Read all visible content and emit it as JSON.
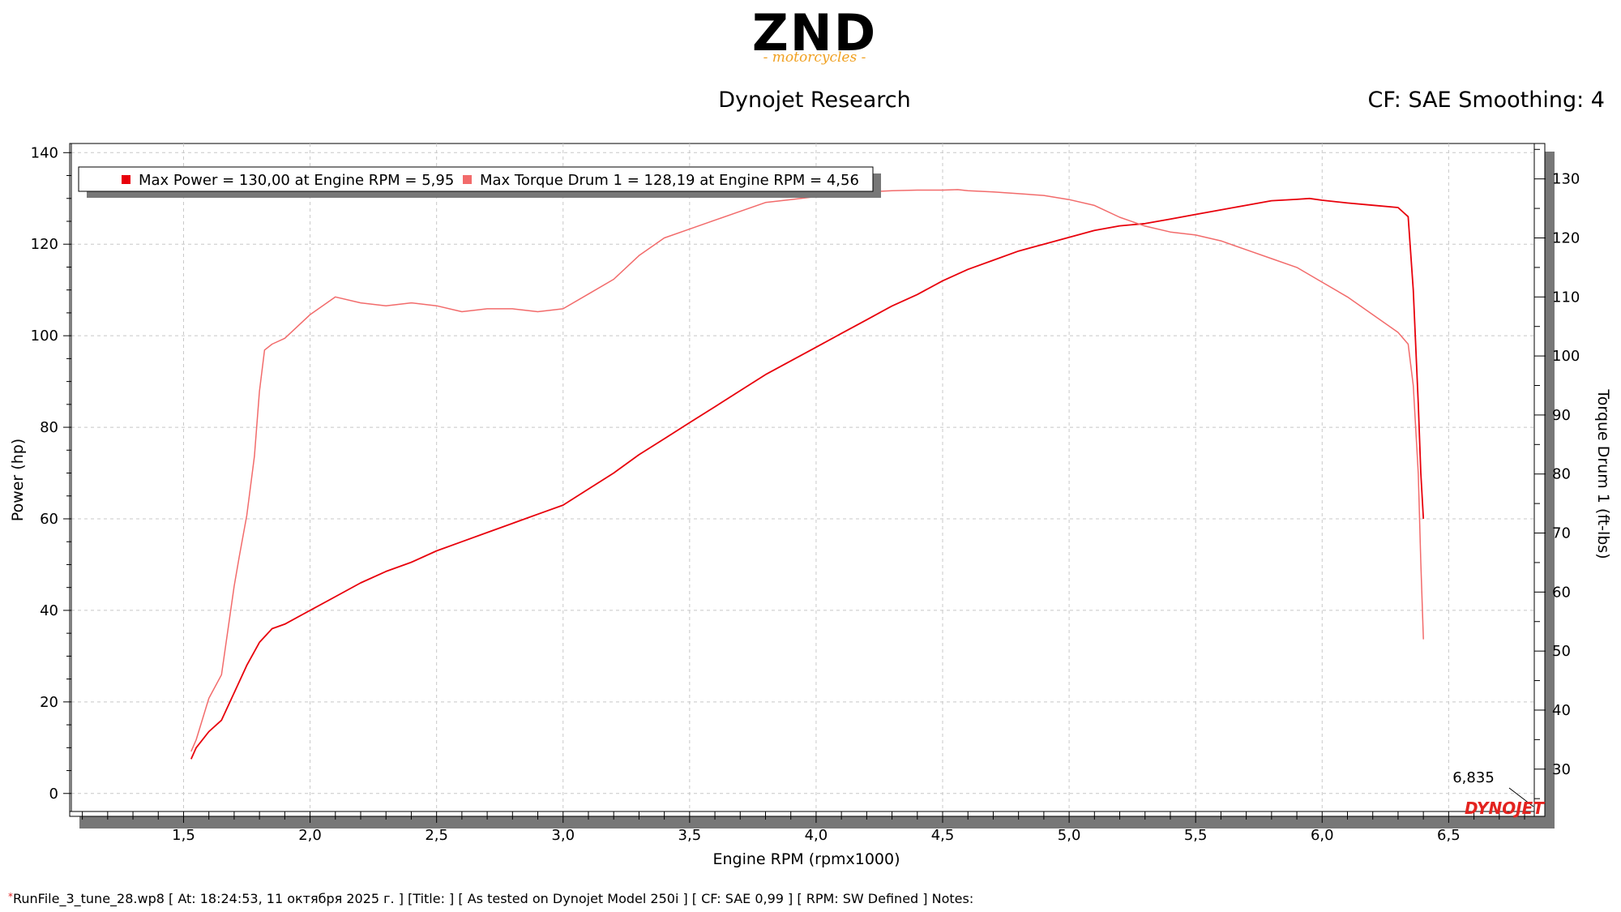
{
  "header": {
    "logo_text": "ZND",
    "logo_sub": "- motorcycles -",
    "center_title": "Dynojet Research",
    "right_info": "CF: SAE Smoothing: 4"
  },
  "footer": {
    "mark": "*",
    "text": "RunFile_3_tune_28.wp8 [ At: 18:24:53, 11 октября 2025 г. ] [Title: ]  [ As tested on Dynojet Model 250i ] [ CF: SAE 0,99 ] [ RPM: SW Defined ] Notes:"
  },
  "watermark": {
    "brand_text": "DYNOJET",
    "color": "#e3231f"
  },
  "chart_data": {
    "type": "line",
    "xlabel": "Engine RPM (rpmx1000)",
    "ylabel": "Power (hp)",
    "y2label": "Torque Drum 1 (ft-lbs)",
    "xlim": [
      1.05,
      6.88
    ],
    "ylim": [
      -5,
      142
    ],
    "y2lim": [
      22,
      136
    ],
    "x_ticks": [
      "1,5",
      "2,0",
      "2,5",
      "3,0",
      "3,5",
      "4,0",
      "4,5",
      "5,0",
      "5,5",
      "6,0",
      "6,5"
    ],
    "x_tick_values": [
      1.5,
      2.0,
      2.5,
      3.0,
      3.5,
      4.0,
      4.5,
      5.0,
      5.5,
      6.0,
      6.5
    ],
    "y_ticks": [
      0,
      20,
      40,
      60,
      80,
      100,
      120,
      140
    ],
    "y2_ticks": [
      30,
      40,
      50,
      60,
      70,
      80,
      90,
      100,
      110,
      120,
      130
    ],
    "grid": true,
    "legend_position": "top-left",
    "cursor": {
      "label": "6,835",
      "x": 6.835
    },
    "legend": [
      {
        "text": "Max Power = 130,00 at Engine RPM = 5,95",
        "color": "#e8000b"
      },
      {
        "text": "Max Torque Drum 1 = 128,19 at Engine RPM = 4,56",
        "color": "#f26b6b"
      }
    ],
    "series": [
      {
        "name": "Power",
        "axis": "left",
        "color": "#e8000b",
        "x": [
          1.53,
          1.55,
          1.6,
          1.65,
          1.7,
          1.75,
          1.8,
          1.85,
          1.9,
          2.0,
          2.1,
          2.2,
          2.3,
          2.4,
          2.5,
          2.6,
          2.7,
          2.8,
          2.9,
          3.0,
          3.1,
          3.2,
          3.3,
          3.4,
          3.5,
          3.6,
          3.7,
          3.8,
          3.9,
          4.0,
          4.1,
          4.2,
          4.3,
          4.4,
          4.5,
          4.6,
          4.7,
          4.8,
          4.9,
          5.0,
          5.1,
          5.2,
          5.3,
          5.4,
          5.5,
          5.6,
          5.7,
          5.8,
          5.9,
          5.95,
          6.0,
          6.1,
          6.2,
          6.3,
          6.34,
          6.36,
          6.38,
          6.39,
          6.4
        ],
        "y": [
          7.5,
          10,
          13.5,
          16,
          22,
          28,
          33,
          36,
          37,
          40,
          43,
          46,
          48.5,
          50.5,
          53,
          55,
          57,
          59,
          61,
          63,
          66.5,
          70,
          74,
          77.5,
          81,
          84.5,
          88,
          91.5,
          94.5,
          97.5,
          100.5,
          103.5,
          106.5,
          109,
          112,
          114.5,
          116.5,
          118.5,
          120,
          121.5,
          123,
          124,
          124.5,
          125.5,
          126.5,
          127.5,
          128.5,
          129.5,
          129.8,
          130,
          129.6,
          129,
          128.5,
          128,
          126,
          110,
          85,
          70,
          60
        ]
      },
      {
        "name": "Torque Drum 1",
        "axis": "right",
        "color": "#f26b6b",
        "x": [
          1.53,
          1.55,
          1.6,
          1.65,
          1.7,
          1.72,
          1.75,
          1.78,
          1.8,
          1.82,
          1.85,
          1.9,
          2.0,
          2.1,
          2.2,
          2.3,
          2.4,
          2.5,
          2.6,
          2.7,
          2.8,
          2.9,
          3.0,
          3.1,
          3.2,
          3.3,
          3.4,
          3.5,
          3.6,
          3.7,
          3.8,
          3.9,
          4.0,
          4.1,
          4.2,
          4.3,
          4.4,
          4.5,
          4.56,
          4.6,
          4.7,
          4.8,
          4.9,
          5.0,
          5.1,
          5.2,
          5.3,
          5.4,
          5.5,
          5.6,
          5.7,
          5.8,
          5.9,
          6.0,
          6.1,
          6.2,
          6.3,
          6.34,
          6.36,
          6.38,
          6.39,
          6.4
        ],
        "y": [
          33,
          35,
          42,
          46,
          61,
          66,
          73,
          83,
          94,
          101,
          102,
          103,
          107,
          110,
          109,
          108.5,
          109,
          108.5,
          107.5,
          108,
          108,
          107.5,
          108,
          110.5,
          113,
          117,
          120,
          121.5,
          123,
          124.5,
          126,
          126.5,
          127,
          127.5,
          127.8,
          128,
          128.1,
          128.1,
          128.19,
          128,
          127.8,
          127.5,
          127.2,
          126.5,
          125.5,
          123.5,
          122,
          121,
          120.5,
          119.5,
          118,
          116.5,
          115,
          112.5,
          110,
          107,
          104,
          102,
          95,
          80,
          65,
          52
        ]
      }
    ]
  }
}
